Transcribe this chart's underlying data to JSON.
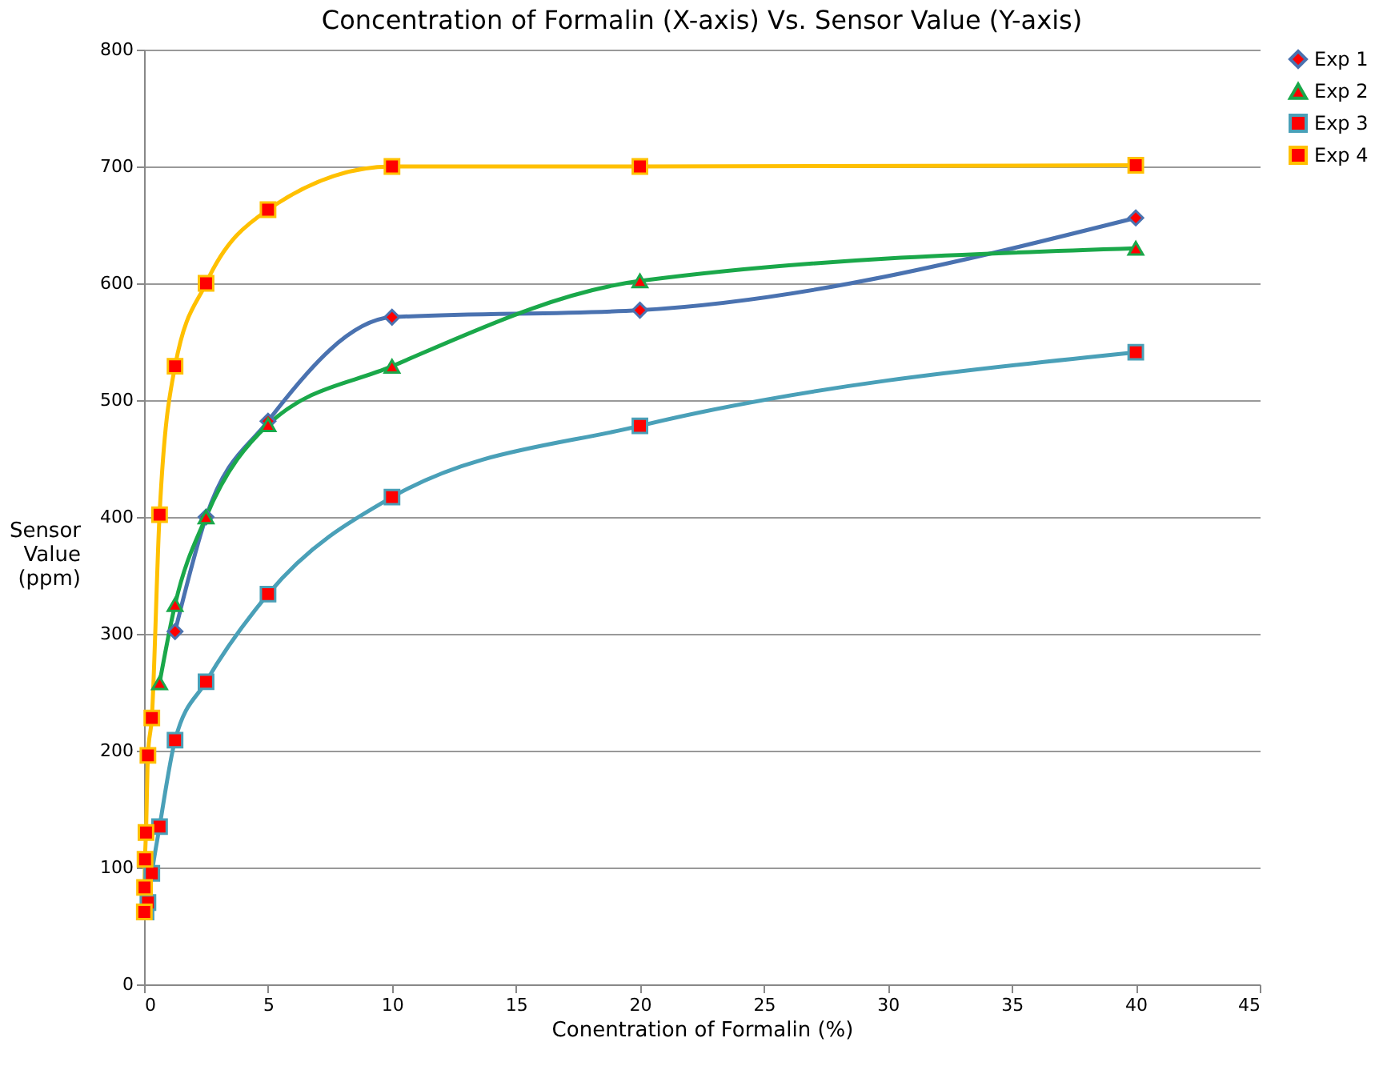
{
  "chart_data": {
    "type": "line",
    "title": "Concentration of Formalin (X-axis) Vs. Sensor Value (Y-axis)",
    "xlabel": "Conentration of Formalin (%)",
    "ylabel": "Sensor Value (ppm)",
    "x": [
      0.0098,
      0.0195,
      0.039,
      0.078,
      0.156,
      0.3125,
      0.625,
      1.25,
      2.5,
      5,
      10,
      20,
      40
    ],
    "series": [
      {
        "name": "Exp 1",
        "color": "#4a72b0",
        "marker": "diamond",
        "values": [
          null,
          null,
          null,
          null,
          null,
          null,
          null,
          302,
          400,
          482,
          571,
          577,
          656
        ]
      },
      {
        "name": "Exp 2",
        "color": "#1aa84a",
        "marker": "triangle",
        "values": [
          null,
          null,
          null,
          null,
          null,
          null,
          258,
          325,
          400,
          479,
          529,
          602,
          630
        ]
      },
      {
        "name": "Exp 3",
        "color": "#4aa0b8",
        "marker": "square",
        "values": [
          null,
          null,
          null,
          62,
          70,
          95,
          135,
          209,
          259,
          334,
          417,
          478,
          541
        ]
      },
      {
        "name": "Exp 4",
        "color": "#ffc000",
        "marker": "square",
        "values": [
          62,
          83,
          107,
          130,
          196,
          228,
          402,
          529,
          600,
          663,
          700,
          700,
          701
        ]
      }
    ],
    "xlim": [
      0,
      45
    ],
    "xticks": [
      0,
      5,
      10,
      15,
      20,
      25,
      30,
      35,
      40,
      45
    ],
    "ylim": [
      0,
      800
    ],
    "yticks": [
      0,
      100,
      200,
      300,
      400,
      500,
      600,
      700,
      800
    ],
    "grid": "y",
    "legend": "right",
    "line_style": "solid"
  }
}
